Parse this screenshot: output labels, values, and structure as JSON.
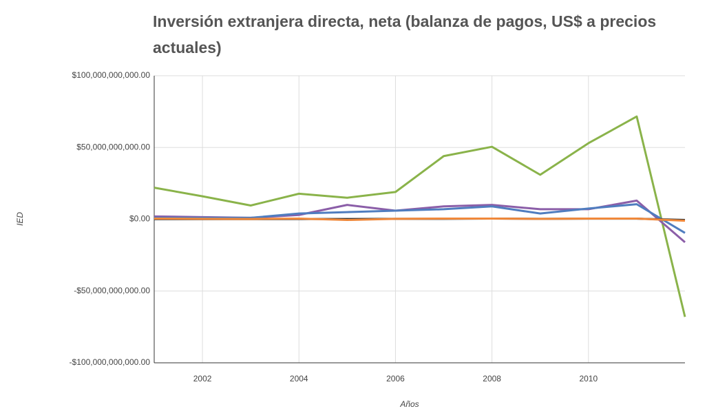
{
  "chart_data": {
    "type": "line",
    "title": "Inversión extranjera directa, neta (balanza de pagos, US$ a precios actuales)",
    "x_label": "Años",
    "y_label": "IED",
    "x": [
      2001,
      2002,
      2003,
      2004,
      2005,
      2006,
      2007,
      2008,
      2009,
      2010,
      2011,
      2012
    ],
    "xlim": [
      2001,
      2012
    ],
    "xticks": [
      2002,
      2004,
      2006,
      2008,
      2010
    ],
    "ylim": [
      -100000000000,
      100000000000
    ],
    "yticks": [
      {
        "value": -100000000000,
        "label": "-$100,000,000,000.00"
      },
      {
        "value": -50000000000,
        "label": "-$50,000,000,000.00"
      },
      {
        "value": 0,
        "label": "$0.00"
      },
      {
        "value": 50000000000,
        "label": "$50,000,000,000.00"
      },
      {
        "value": 100000000000,
        "label": "$100,000,000,000.00"
      }
    ],
    "grid": true,
    "series": [
      {
        "color": "#8ab34a",
        "values": [
          22000000000,
          16000000000,
          9600000000,
          17800000000,
          15000000000,
          19000000000,
          44000000000,
          50500000000,
          31000000000,
          53000000000,
          71600000000,
          -68000000000
        ]
      },
      {
        "color": "#8b5ea8",
        "values": [
          2000000000,
          1500000000,
          1000000000,
          3000000000,
          10000000000,
          6000000000,
          9000000000,
          10000000000,
          7000000000,
          7000000000,
          13000000000,
          -16000000000
        ]
      },
      {
        "color": "#4f7dbf",
        "values": [
          1000000000,
          1000000000,
          1000000000,
          4000000000,
          5000000000,
          6000000000,
          7000000000,
          9000000000,
          4000000000,
          7500000000,
          10500000000,
          -9500000000
        ]
      },
      {
        "color": "#333333",
        "values": [
          100000000,
          100000000,
          100000000,
          200000000,
          200000000,
          300000000,
          300000000,
          500000000,
          300000000,
          400000000,
          400000000,
          -500000000
        ]
      },
      {
        "color": "#f0883a",
        "values": [
          500000000,
          300000000,
          200000000,
          500000000,
          -500000000,
          300000000,
          500000000,
          500000000,
          300000000,
          500000000,
          500000000,
          -1000000000
        ]
      }
    ]
  }
}
